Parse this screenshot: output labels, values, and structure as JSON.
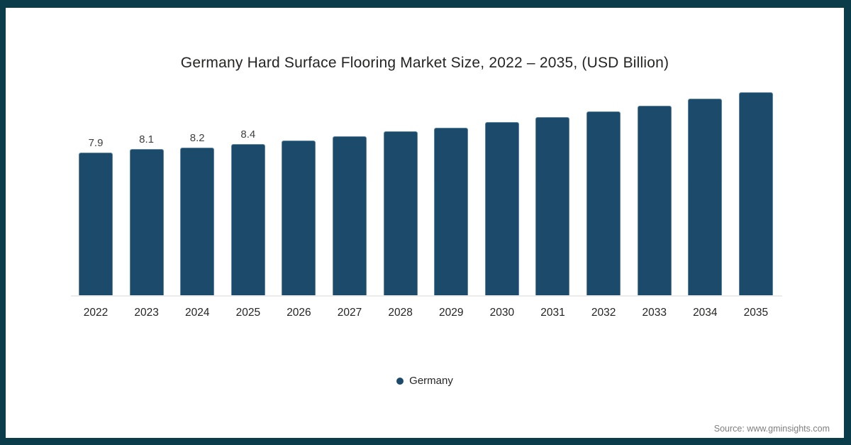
{
  "window": {
    "background": "#ffffff",
    "frame_border_color": "#0b3c4a"
  },
  "chart_data": {
    "type": "bar",
    "title": "Germany Hard Surface Flooring Market Size, 2022 – 2035, (USD Billion)",
    "categories": [
      "2022",
      "2023",
      "2024",
      "2025",
      "2026",
      "2027",
      "2028",
      "2029",
      "2030",
      "2031",
      "2032",
      "2033",
      "2034",
      "2035"
    ],
    "series": [
      {
        "name": "Germany",
        "color": "#1b4a6b",
        "values": [
          7.9,
          8.1,
          8.2,
          8.4,
          8.6,
          8.8,
          9.1,
          9.3,
          9.6,
          9.9,
          10.2,
          10.5,
          10.9,
          11.3
        ]
      }
    ],
    "data_labels": [
      "7.9",
      "8.1",
      "8.2",
      "8.4",
      "",
      "",
      "",
      "",
      "",
      "",
      "",
      "",
      "",
      ""
    ],
    "xlabel": "",
    "ylabel": "",
    "ylim": [
      0,
      11.5
    ],
    "grid": false,
    "y_axis_visible": false,
    "legend_position": "bottom"
  },
  "legend": {
    "label": "Germany",
    "marker_color": "#1b4a6b"
  },
  "footer": {
    "source_text": "Source: www.gminsights.com"
  }
}
